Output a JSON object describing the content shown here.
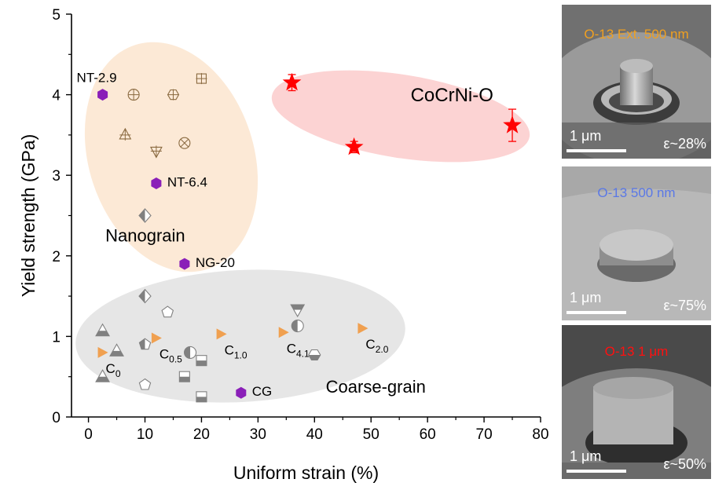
{
  "chart_data": {
    "type": "scatter",
    "xlabel": "Uniform strain (%)",
    "ylabel": "Yield strength (GPa)",
    "xlim": [
      -3,
      80
    ],
    "ylim": [
      0,
      5
    ],
    "xticks": [
      0,
      10,
      20,
      30,
      40,
      50,
      60,
      70,
      80
    ],
    "yticks": [
      0,
      1,
      2,
      3,
      4,
      5
    ],
    "region_labels": [
      {
        "id": "nanograin",
        "text": "Nanograin",
        "color": "#f0a050",
        "x": 3,
        "y": 2.18
      },
      {
        "id": "coarse-grain",
        "text": "Coarse-grain",
        "color": "#8c8c8c",
        "x": 42,
        "y": 0.3
      },
      {
        "id": "cocrni-o",
        "text": "CoCrNi-O",
        "color": "#ff0000",
        "x": 57,
        "y": 3.92
      }
    ],
    "series": [
      {
        "name": "CoCrNi-O",
        "color": "#ff0000",
        "marker": "star",
        "points": [
          {
            "x": 36,
            "y": 4.15,
            "err": 0.1
          },
          {
            "x": 47,
            "y": 3.35,
            "err": 0.07
          },
          {
            "x": 75,
            "y": 3.62,
            "err": 0.2
          }
        ]
      },
      {
        "name": "purple",
        "color": "#8a1fb8",
        "marker": "hexagon",
        "points": [
          {
            "x": 2.5,
            "y": 4.0,
            "label": "NT-2.9"
          },
          {
            "x": 12,
            "y": 2.9,
            "label": "NT-6.4"
          },
          {
            "x": 17,
            "y": 1.9,
            "label": "NG-20"
          },
          {
            "x": 27,
            "y": 0.3,
            "label": "CG"
          }
        ]
      },
      {
        "name": "orange",
        "color": "#f0a050",
        "marker": "triangle-right",
        "points": [
          {
            "x": 2.5,
            "y": 0.8,
            "label": "C",
            "sub": "0"
          },
          {
            "x": 12,
            "y": 0.98,
            "label": "C",
            "sub": "0.5"
          },
          {
            "x": 23.5,
            "y": 1.03,
            "label": "C",
            "sub": "1.0"
          },
          {
            "x": 34.5,
            "y": 1.05,
            "label": "C",
            "sub": "4.1"
          },
          {
            "x": 48.5,
            "y": 1.1,
            "label": "C",
            "sub": "2.0"
          }
        ]
      },
      {
        "name": "nanograin-open",
        "color": "#8a6a40",
        "marker": "open",
        "points": [
          {
            "x": 8,
            "y": 4.0,
            "shape": "circle-plus"
          },
          {
            "x": 15,
            "y": 4.0,
            "shape": "hex-plus"
          },
          {
            "x": 20,
            "y": 4.2,
            "shape": "square-plus"
          },
          {
            "x": 6.5,
            "y": 3.5,
            "shape": "tri-up-plus"
          },
          {
            "x": 12,
            "y": 3.3,
            "shape": "tri-down-plus"
          },
          {
            "x": 17,
            "y": 3.4,
            "shape": "circle-x"
          }
        ]
      },
      {
        "name": "grey",
        "color": "#808080",
        "marker": "grey",
        "points": [
          {
            "x": 10,
            "y": 2.5,
            "shape": "diamond-half"
          },
          {
            "x": 10,
            "y": 1.5,
            "shape": "diamond-half"
          },
          {
            "x": 14,
            "y": 1.3,
            "shape": "pentagon"
          },
          {
            "x": 37,
            "y": 1.33,
            "shape": "tri-down-half"
          },
          {
            "x": 37,
            "y": 1.13,
            "shape": "circle-half"
          },
          {
            "x": 2.5,
            "y": 1.07,
            "shape": "tri-up-half"
          },
          {
            "x": 10,
            "y": 0.9,
            "shape": "pentagon-half"
          },
          {
            "x": 5,
            "y": 0.82,
            "shape": "tri-up-half"
          },
          {
            "x": 18,
            "y": 0.8,
            "shape": "circle-half"
          },
          {
            "x": 20,
            "y": 0.7,
            "shape": "square-half"
          },
          {
            "x": 40,
            "y": 0.77,
            "shape": "hex-half"
          },
          {
            "x": 2.5,
            "y": 0.5,
            "shape": "tri-up-half"
          },
          {
            "x": 17,
            "y": 0.5,
            "shape": "square-half"
          },
          {
            "x": 10,
            "y": 0.4,
            "shape": "pentagon"
          },
          {
            "x": 20,
            "y": 0.25,
            "shape": "square-half"
          }
        ]
      }
    ]
  },
  "sem_panels": [
    {
      "title": "O-13 Ext. 500 nm",
      "title_color": "#f0a020",
      "scale": "1 μm",
      "strain": "ε~28%"
    },
    {
      "title": "O-13 500 nm",
      "title_color": "#5a78e6",
      "scale": "1 μm",
      "strain": "ε~75%"
    },
    {
      "title": "O-13 1 μm",
      "title_color": "#ff1010",
      "scale": "1 μm",
      "strain": "ε~50%"
    }
  ]
}
